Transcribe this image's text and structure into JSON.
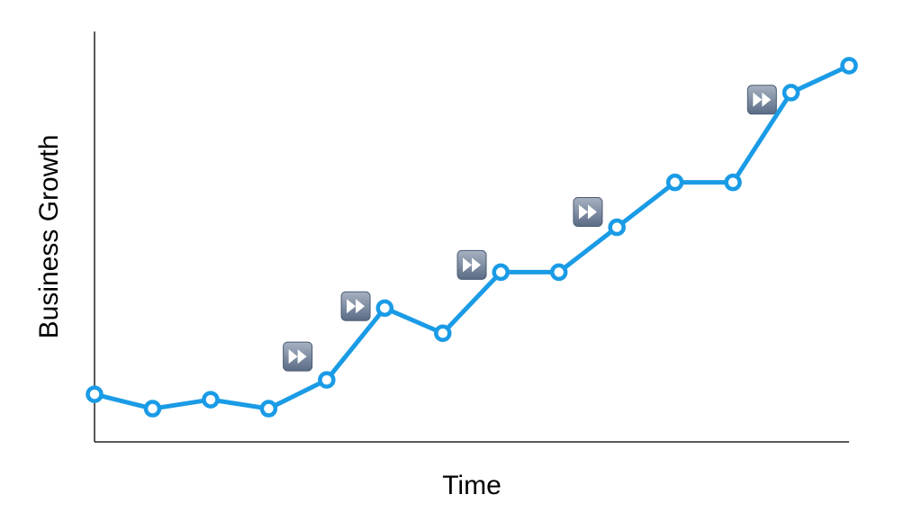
{
  "chart_data": {
    "type": "line",
    "xlabel": "Time",
    "ylabel": "Business Growth",
    "grid": false,
    "legend": "none",
    "x": [
      1,
      2,
      3,
      4,
      5,
      6,
      7,
      8,
      9,
      10,
      11,
      12,
      13,
      14
    ],
    "xlim": [
      1,
      14
    ],
    "ylim": [
      0,
      100
    ],
    "series": [
      {
        "color": "#1a9be6",
        "values": [
          8.5,
          4.5,
          7,
          4.5,
          12.5,
          32.5,
          25.5,
          42.5,
          42.5,
          55,
          67.5,
          67.5,
          92.5,
          100
        ]
      }
    ],
    "annotations": [
      {
        "icon": "fast-forward-icon",
        "after_x": 4
      },
      {
        "icon": "fast-forward-icon",
        "after_x": 5
      },
      {
        "icon": "fast-forward-icon",
        "after_x": 7
      },
      {
        "icon": "fast-forward-icon",
        "after_x": 9
      },
      {
        "icon": "fast-forward-icon",
        "after_x": 12
      }
    ],
    "colors": {
      "axis": "#222222",
      "icon_fill_top": "#a7b2c2",
      "icon_fill_bottom": "#5a6b85",
      "icon_glyph": "#ffffff"
    }
  }
}
